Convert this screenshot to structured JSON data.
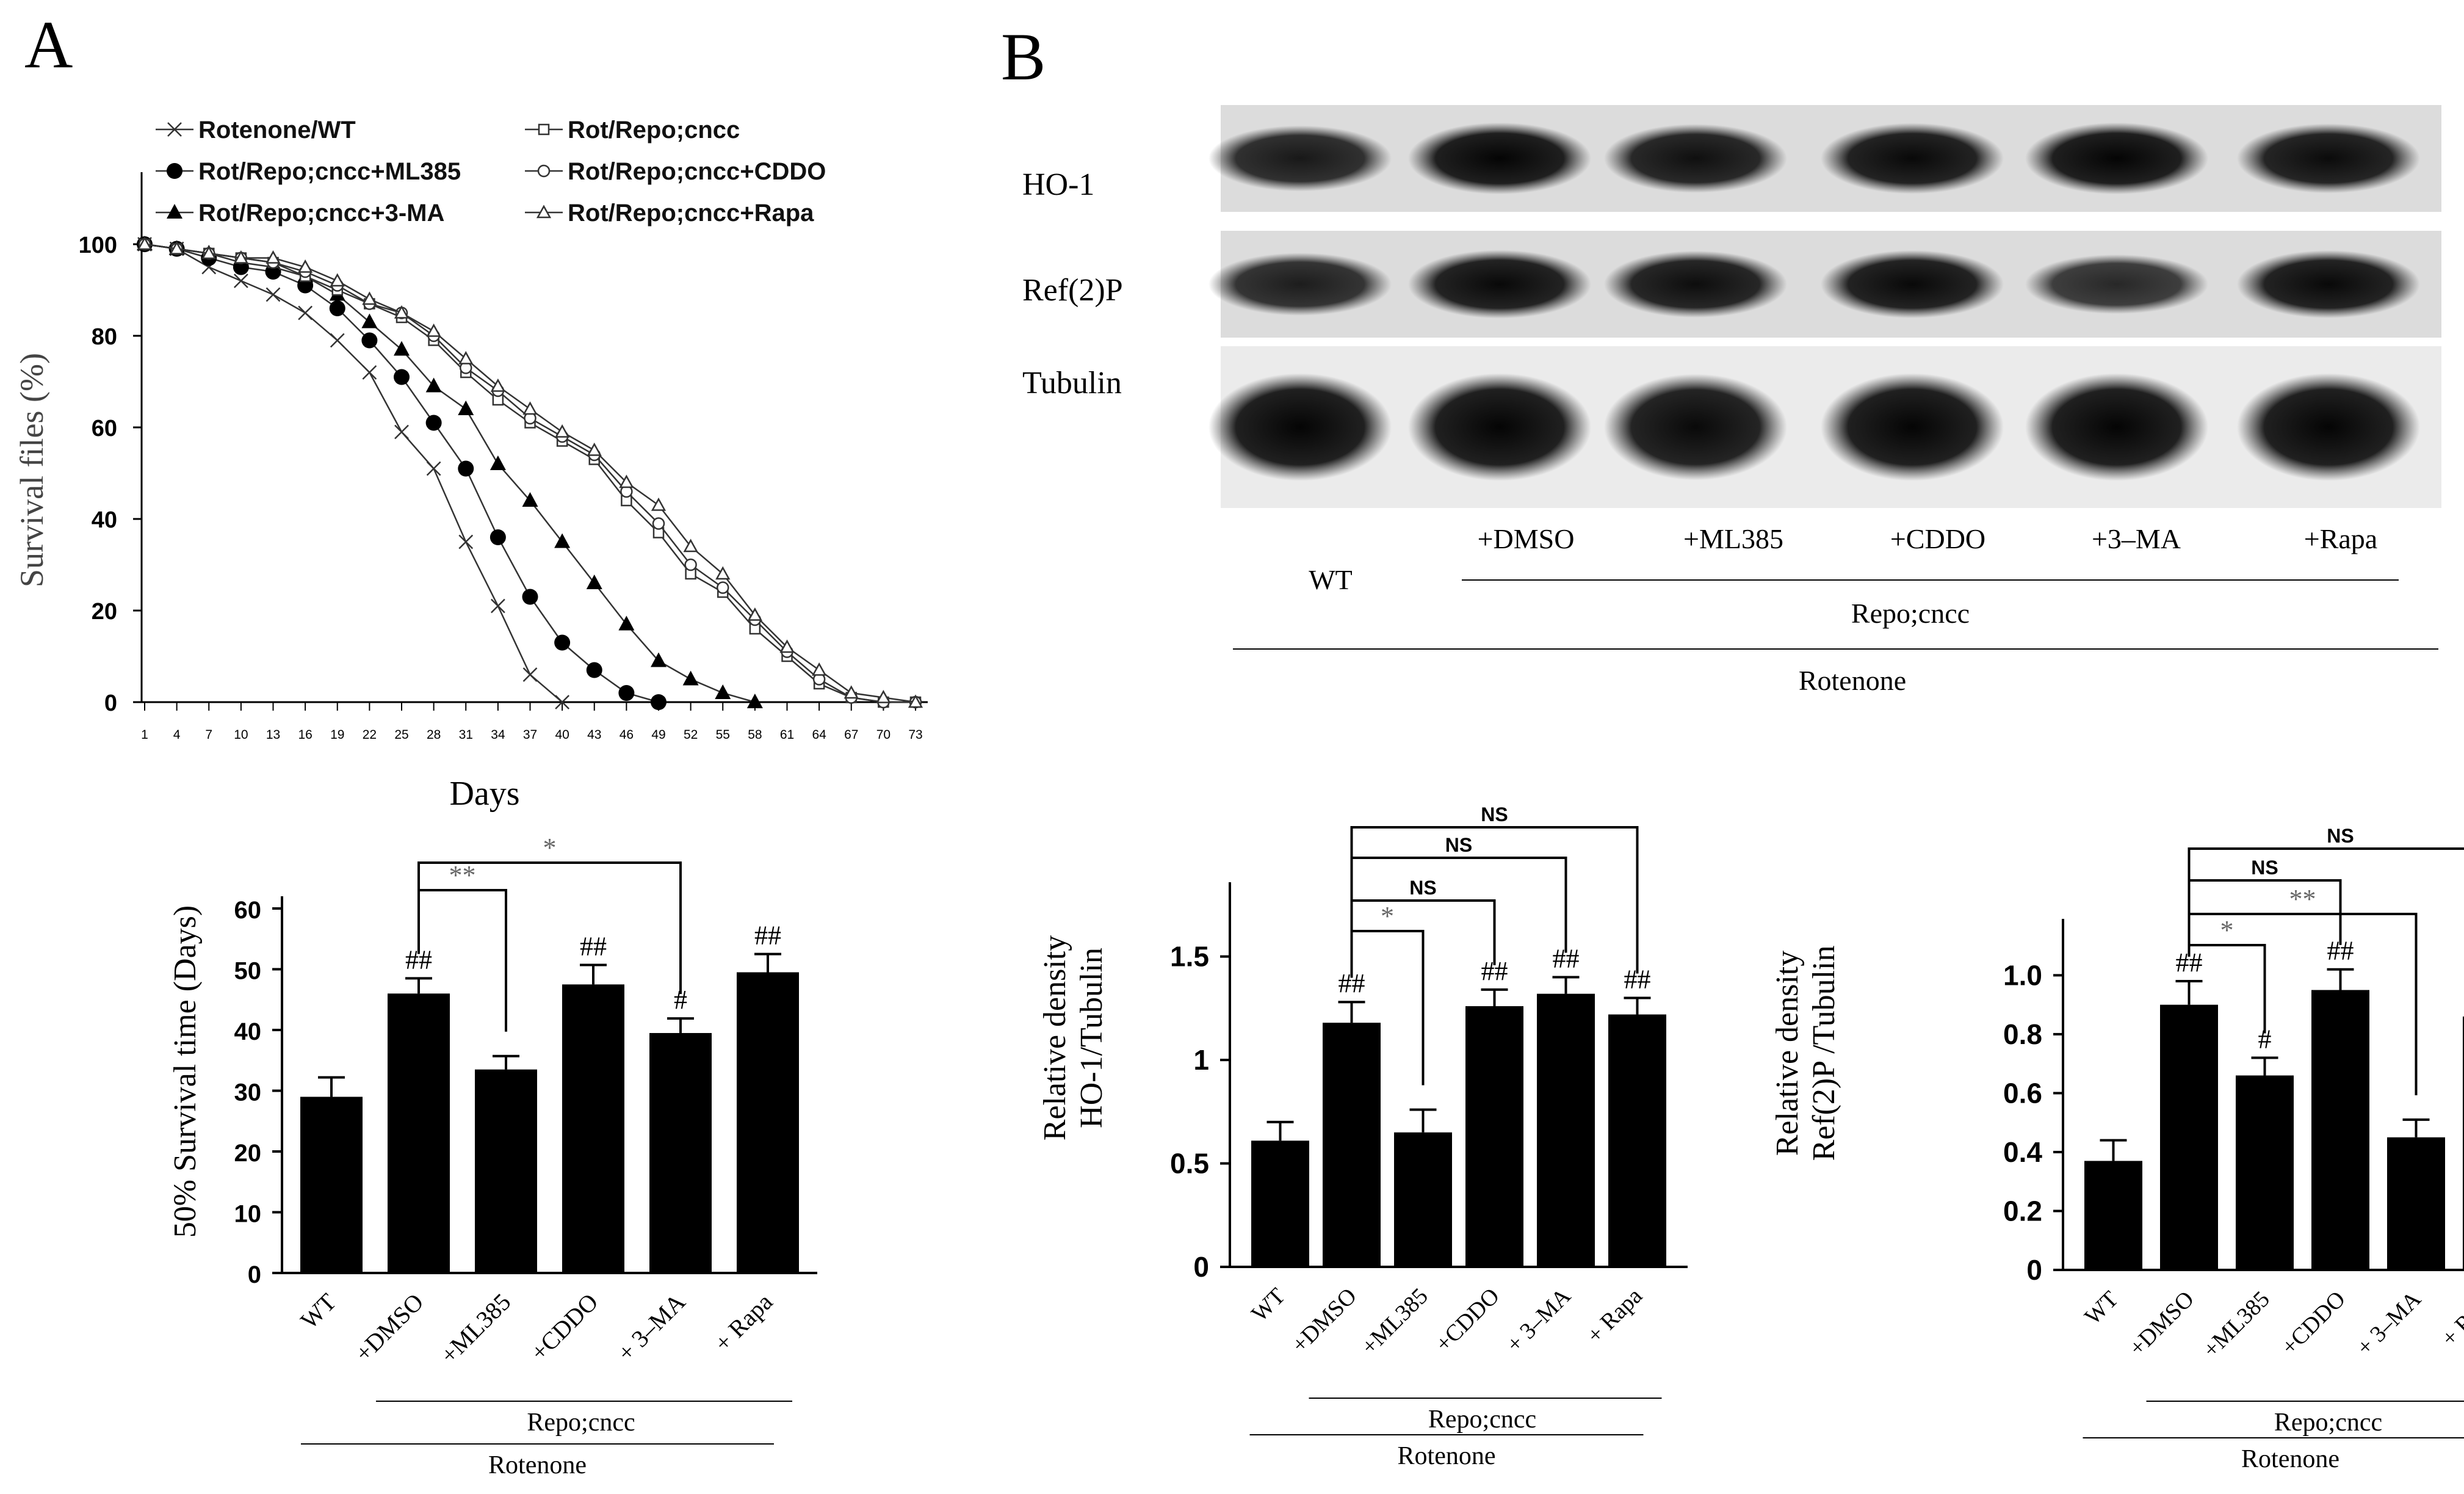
{
  "panels": {
    "a": "A",
    "b": "B"
  },
  "chart_data": [
    {
      "type": "line",
      "xlabel": "Days",
      "ylabel": "Survival files (%)",
      "x": [
        1,
        4,
        7,
        10,
        13,
        16,
        19,
        22,
        25,
        28,
        31,
        34,
        37,
        40,
        43,
        46,
        49,
        52,
        55,
        58,
        61,
        64,
        67,
        70,
        73
      ],
      "xlim": [
        1,
        73
      ],
      "ylim": [
        0,
        100
      ],
      "yticks": [
        0,
        20,
        40,
        60,
        80,
        100
      ],
      "grid": false,
      "legend_position": "top",
      "series": [
        {
          "name": "Rotenone/WT",
          "marker": "x",
          "points": [
            [
              1,
              100
            ],
            [
              4,
              99
            ],
            [
              7,
              95
            ],
            [
              10,
              92
            ],
            [
              13,
              89
            ],
            [
              16,
              85
            ],
            [
              19,
              79
            ],
            [
              22,
              72
            ],
            [
              25,
              59
            ],
            [
              28,
              51
            ],
            [
              31,
              35
            ],
            [
              34,
              21
            ],
            [
              37,
              6
            ],
            [
              40,
              0
            ]
          ]
        },
        {
          "name": "Rot/Repo;cncc+ML385",
          "marker": "circle-filled",
          "points": [
            [
              1,
              100
            ],
            [
              4,
              99
            ],
            [
              7,
              97
            ],
            [
              10,
              95
            ],
            [
              13,
              94
            ],
            [
              16,
              91
            ],
            [
              19,
              86
            ],
            [
              22,
              79
            ],
            [
              25,
              71
            ],
            [
              28,
              61
            ],
            [
              31,
              51
            ],
            [
              34,
              36
            ],
            [
              37,
              23
            ],
            [
              40,
              13
            ],
            [
              43,
              7
            ],
            [
              46,
              2
            ],
            [
              49,
              0
            ]
          ]
        },
        {
          "name": "Rot/Repo;cncc+3-MA",
          "marker": "triangle-filled",
          "points": [
            [
              1,
              100
            ],
            [
              4,
              99
            ],
            [
              7,
              98
            ],
            [
              10,
              96
            ],
            [
              13,
              95
            ],
            [
              16,
              93
            ],
            [
              19,
              89
            ],
            [
              22,
              83
            ],
            [
              25,
              77
            ],
            [
              28,
              69
            ],
            [
              31,
              64
            ],
            [
              34,
              52
            ],
            [
              37,
              44
            ],
            [
              40,
              35
            ],
            [
              43,
              26
            ],
            [
              46,
              17
            ],
            [
              49,
              9
            ],
            [
              52,
              5
            ],
            [
              55,
              2
            ],
            [
              58,
              0
            ]
          ]
        },
        {
          "name": "Rot/Repo;cncc",
          "marker": "square-open",
          "points": [
            [
              1,
              100
            ],
            [
              4,
              99
            ],
            [
              7,
              98
            ],
            [
              10,
              97
            ],
            [
              13,
              96
            ],
            [
              16,
              93
            ],
            [
              19,
              90
            ],
            [
              22,
              87
            ],
            [
              25,
              84
            ],
            [
              28,
              79
            ],
            [
              31,
              72
            ],
            [
              34,
              66
            ],
            [
              37,
              61
            ],
            [
              40,
              57
            ],
            [
              43,
              53
            ],
            [
              46,
              44
            ],
            [
              49,
              37
            ],
            [
              52,
              28
            ],
            [
              55,
              24
            ],
            [
              58,
              16
            ],
            [
              61,
              10
            ],
            [
              64,
              4
            ],
            [
              67,
              1
            ],
            [
              70,
              0
            ],
            [
              73,
              0
            ]
          ]
        },
        {
          "name": "Rot/Repo;cncc+CDDO",
          "marker": "circle-open",
          "points": [
            [
              1,
              100
            ],
            [
              4,
              99
            ],
            [
              7,
              98
            ],
            [
              10,
              97
            ],
            [
              13,
              96
            ],
            [
              16,
              94
            ],
            [
              19,
              91
            ],
            [
              22,
              87
            ],
            [
              25,
              85
            ],
            [
              28,
              80
            ],
            [
              31,
              73
            ],
            [
              34,
              68
            ],
            [
              37,
              62
            ],
            [
              40,
              58
            ],
            [
              43,
              54
            ],
            [
              46,
              46
            ],
            [
              49,
              39
            ],
            [
              52,
              30
            ],
            [
              55,
              25
            ],
            [
              58,
              18
            ],
            [
              61,
              11
            ],
            [
              64,
              5
            ],
            [
              67,
              1
            ],
            [
              70,
              0
            ],
            [
              73,
              0
            ]
          ]
        },
        {
          "name": "Rot/Repo;cncc+Rapa",
          "marker": "triangle-open",
          "points": [
            [
              1,
              100
            ],
            [
              4,
              99
            ],
            [
              7,
              98
            ],
            [
              10,
              97
            ],
            [
              13,
              97
            ],
            [
              16,
              95
            ],
            [
              19,
              92
            ],
            [
              22,
              88
            ],
            [
              25,
              85
            ],
            [
              28,
              81
            ],
            [
              31,
              75
            ],
            [
              34,
              69
            ],
            [
              37,
              64
            ],
            [
              40,
              59
            ],
            [
              43,
              55
            ],
            [
              46,
              48
            ],
            [
              49,
              43
            ],
            [
              52,
              34
            ],
            [
              55,
              28
            ],
            [
              58,
              19
            ],
            [
              61,
              12
            ],
            [
              64,
              7
            ],
            [
              67,
              2
            ],
            [
              70,
              1
            ],
            [
              73,
              0
            ]
          ]
        }
      ]
    },
    {
      "type": "bar",
      "ylabel": "50% Survival time (Days)",
      "categories": [
        "WT",
        "+DMSO",
        "+ML385",
        "+CDDO",
        "+ 3–MA",
        "+ Rapa"
      ],
      "values": [
        29,
        46,
        33.5,
        47.5,
        39.5,
        49.5
      ],
      "errors": [
        3.2,
        2.5,
        2.2,
        3.2,
        2.4,
        3.0
      ],
      "marks": [
        "",
        "##",
        "",
        "##",
        "#",
        "##"
      ],
      "ylim": [
        0,
        60
      ],
      "yticks": [
        0,
        10,
        20,
        30,
        40,
        50,
        60
      ],
      "brackets": [
        {
          "from": 1,
          "to": 2,
          "label": "**"
        },
        {
          "from": 1,
          "to": 4,
          "label": "*"
        }
      ],
      "group_labels": {
        "inner": "Repo;cncc",
        "outer": "Rotenone"
      }
    },
    {
      "type": "bar",
      "ylabel_lines": [
        "Relative density",
        "HO-1/Tubulin"
      ],
      "categories": [
        "WT",
        "+DMSO",
        "+ML385",
        "+CDDO",
        "+ 3–MA",
        "+ Rapa"
      ],
      "values": [
        0.61,
        1.18,
        0.65,
        1.26,
        1.32,
        1.22
      ],
      "errors": [
        0.09,
        0.1,
        0.11,
        0.08,
        0.08,
        0.08
      ],
      "marks": [
        "",
        "##",
        "",
        "##",
        "##",
        "##"
      ],
      "ylim": [
        0,
        1.8
      ],
      "yticks": [
        0,
        0.5,
        1,
        1.5
      ],
      "ytick_labels": [
        "0",
        "0.5",
        "1",
        "1.5"
      ],
      "brackets": [
        {
          "from": 1,
          "to": 2,
          "label": "*"
        },
        {
          "from": 1,
          "to": 3,
          "label": "NS"
        },
        {
          "from": 1,
          "to": 4,
          "label": "NS"
        },
        {
          "from": 1,
          "to": 5,
          "label": "NS"
        }
      ],
      "group_labels": {
        "inner": "Repo;cncc",
        "outer": "Rotenone"
      }
    },
    {
      "type": "bar",
      "ylabel_lines": [
        "Relative density",
        "Ref(2)P /Tubulin"
      ],
      "categories": [
        "WT",
        "+DMSO",
        "+ML385",
        "+CDDO",
        "+ 3–MA",
        "+ Rapa"
      ],
      "values": [
        0.37,
        0.9,
        0.66,
        0.95,
        0.45,
        0.86
      ],
      "errors": [
        0.07,
        0.08,
        0.06,
        0.07,
        0.06,
        0.08
      ],
      "marks": [
        "",
        "##",
        "#",
        "##",
        "",
        "##"
      ],
      "ylim": [
        0,
        1.15
      ],
      "yticks": [
        0,
        0.2,
        0.4,
        0.6,
        0.8,
        1.0
      ],
      "ytick_labels": [
        "0",
        "0.2",
        "0.4",
        "0.6",
        "0.8",
        "1.0"
      ],
      "brackets": [
        {
          "from": 1,
          "to": 2,
          "label": "*"
        },
        {
          "from": 1,
          "to": 4,
          "label": "**"
        },
        {
          "from": 1,
          "to": 3,
          "label": "NS"
        },
        {
          "from": 1,
          "to": 5,
          "label": "NS"
        }
      ],
      "group_labels": {
        "inner": "Repo;cncc",
        "outer": "Rotenone"
      }
    }
  ],
  "blot": {
    "rows": [
      {
        "label": "HO-1",
        "intensities": [
          0.75,
          0.95,
          0.85,
          0.92,
          0.95,
          0.88
        ]
      },
      {
        "label": "Ref(2)P",
        "intensities": [
          0.72,
          0.92,
          0.86,
          0.9,
          0.6,
          0.9
        ]
      },
      {
        "label": "Tubulin",
        "intensities": [
          0.95,
          0.95,
          0.92,
          0.95,
          0.95,
          0.95
        ]
      }
    ],
    "lanes": [
      "WT",
      "+DMSO",
      "+ML385",
      "+CDDO",
      "+3–MA",
      "+Rapa"
    ],
    "group_inner": "Repo;cncc",
    "group_outer": "Rotenone"
  }
}
